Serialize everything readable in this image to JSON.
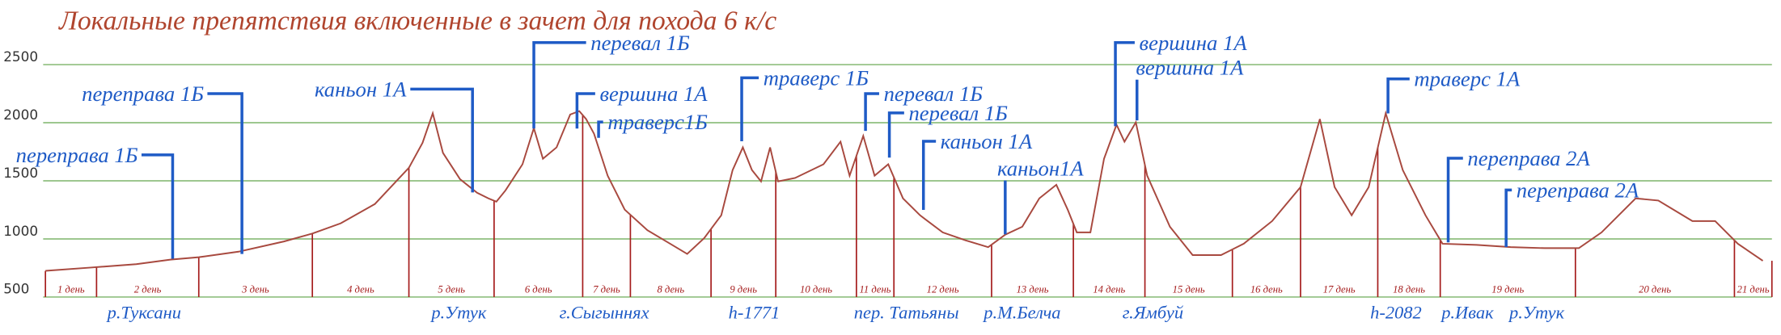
{
  "chart_data": {
    "type": "line",
    "title": "Локальные препятствия включенные в зачет для похода 6 к/с",
    "x": [
      40,
      80,
      120,
      150,
      175,
      210,
      250,
      275,
      300,
      330,
      360,
      372,
      381,
      390,
      405,
      420,
      430,
      437,
      445,
      460,
      470,
      478,
      490,
      502,
      510,
      516,
      523,
      535,
      550,
      570,
      590,
      605,
      620,
      635,
      645,
      654,
      662,
      670,
      678,
      685,
      700,
      725,
      740,
      748,
      760,
      770,
      782,
      795,
      810,
      830,
      850,
      870,
      885,
      900,
      915,
      930,
      940,
      948,
      960,
      972,
      983,
      990,
      1000,
      1010,
      1030,
      1050,
      1075,
      1095,
      1120,
      1145,
      1162,
      1175,
      1190,
      1205,
      1220,
      1235,
      1255,
      1270,
      1300,
      1330,
      1360,
      1390,
      1410,
      1440,
      1460,
      1490,
      1510,
      1530,
      1552
    ],
    "values": [
      725,
      754,
      783,
      822,
      842,
      890,
      978,
      1046,
      1134,
      1300,
      1612,
      1827,
      2081,
      1740,
      1515,
      1398,
      1349,
      1320,
      1417,
      1642,
      1954,
      1690,
      1788,
      2071,
      2100,
      2032,
      1905,
      1544,
      1252,
      1075,
      959,
      871,
      1007,
      1203,
      1593,
      1788,
      1593,
      1495,
      1788,
      1495,
      1524,
      1642,
      1837,
      1544,
      1886,
      1544,
      1642,
      1349,
      1203,
      1056,
      988,
      929,
      1037,
      1105,
      1349,
      1466,
      1252,
      1056,
      1056,
      1690,
      1983,
      1837,
      2003,
      1544,
      1105,
      861,
      861,
      959,
      1154,
      1446,
      2032,
      1446,
      1203,
      1446,
      2081,
      1593,
      1203,
      959,
      949,
      929,
      920,
      920,
      1056,
      1349,
      1330,
      1154,
      1154,
      959,
      812
    ],
    "color": "#a8493f",
    "xlim": [
      0,
      1568
    ],
    "ylim": [
      500,
      2500
    ],
    "yticks": [
      500,
      1000,
      1500,
      2000,
      2500
    ],
    "grid": true,
    "grid_color": "#8fbf7f",
    "day_color": "#a51c1c",
    "annotation_color": "#1f5bc6",
    "day_boundaries": [
      40,
      85,
      175,
      275,
      360,
      435,
      513,
      555,
      626,
      683,
      754,
      787,
      873,
      945,
      1008,
      1085,
      1145,
      1213,
      1268,
      1387,
      1527,
      1560
    ],
    "days": [
      "1 день",
      "2 день",
      "3 день",
      "4 день",
      "5 день",
      "6 день",
      "7 день",
      "8 день",
      "9 день",
      "10 день",
      "11 день",
      "12 день",
      "13 день",
      "14 день",
      "15 день",
      "16 день",
      "17 день",
      "18 день",
      "19 день",
      "20 день",
      "21 день"
    ],
    "annotations": [
      {
        "text": "переправа 1Б",
        "x": 152,
        "y": 830
      },
      {
        "text": "переправа 1Б",
        "x": 213,
        "y": 870
      },
      {
        "text": "каньон 1А",
        "x": 416,
        "y": 1400
      },
      {
        "text": "перевал 1Б",
        "x": 470,
        "y": 1950
      },
      {
        "text": "вершина 1А",
        "x": 508,
        "y": 1950
      },
      {
        "text": "траверс1Б",
        "x": 527,
        "y": 1870
      },
      {
        "text": "траверс 1Б",
        "x": 653,
        "y": 1840
      },
      {
        "text": "перевал 1Б",
        "x": 762,
        "y": 1930
      },
      {
        "text": "перевал 1Б",
        "x": 783,
        "y": 1700
      },
      {
        "text": "каньон 1А",
        "x": 813,
        "y": 1250
      },
      {
        "text": "каньон1А",
        "x": 885,
        "y": 1040
      },
      {
        "text": "вершина 1А",
        "x": 982,
        "y": 1970
      },
      {
        "text": "вершина 1А",
        "x": 1001,
        "y": 2020
      },
      {
        "text": "траверс 1А",
        "x": 1222,
        "y": 2080
      },
      {
        "text": "переправа 2А",
        "x": 1275,
        "y": 970
      },
      {
        "text": "переправа 2А",
        "x": 1326,
        "y": 930
      }
    ],
    "places": [
      {
        "text": "р.Туксани",
        "x": 127
      },
      {
        "text": "р.Утук",
        "x": 404
      },
      {
        "text": "г.Сыгыннях",
        "x": 532
      },
      {
        "text": "h-1771",
        "x": 664
      },
      {
        "text": "пер. Татьяны",
        "x": 798
      },
      {
        "text": "р.М.Белча",
        "x": 900
      },
      {
        "text": "г.Ямбуй",
        "x": 1015
      },
      {
        "text": "h-2082",
        "x": 1229
      },
      {
        "text": "р.Ивак",
        "x": 1292
      },
      {
        "text": "р.Утук",
        "x": 1353
      }
    ]
  }
}
